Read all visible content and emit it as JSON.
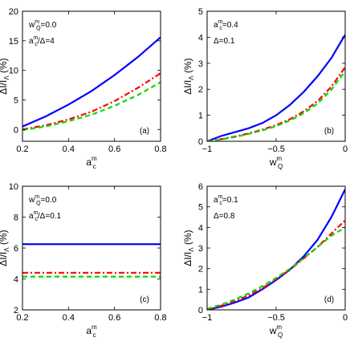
{
  "chart_data": [
    {
      "type": "line",
      "panel": "(a)",
      "xlabel": {
        "base": "a",
        "sup": "m",
        "sub": "c"
      },
      "ylabel": "ΔI/I_Λ (%)",
      "xlim": [
        0.2,
        0.8
      ],
      "ylim": [
        -2,
        20
      ],
      "xticks": [
        "0.2",
        "0.4",
        "0.6",
        "0.8"
      ],
      "yticks": [
        "0",
        "5",
        "10",
        "15",
        "20"
      ],
      "annotations": [
        "w_Q^m=0.0",
        "a_c^m/Δ=4"
      ],
      "series": [
        {
          "color": "#0000ff",
          "style": "solid",
          "x": [
            0.2,
            0.3,
            0.4,
            0.5,
            0.6,
            0.7,
            0.8
          ],
          "y": [
            0.5,
            2.2,
            4.2,
            6.5,
            9.2,
            12.2,
            15.6
          ]
        },
        {
          "color": "#ff0000",
          "style": "dashdot",
          "x": [
            0.2,
            0.3,
            0.4,
            0.5,
            0.6,
            0.7,
            0.8
          ],
          "y": [
            0.0,
            0.7,
            1.7,
            3.0,
            4.8,
            7.0,
            9.5
          ]
        },
        {
          "color": "#00dd00",
          "style": "dashed",
          "x": [
            0.2,
            0.3,
            0.4,
            0.5,
            0.6,
            0.7,
            0.8
          ],
          "y": [
            -0.1,
            0.5,
            1.4,
            2.5,
            4.0,
            5.8,
            8.0
          ]
        }
      ]
    },
    {
      "type": "line",
      "panel": "(b)",
      "xlabel": {
        "base": "w",
        "sup": "m",
        "sub": "Q"
      },
      "ylabel": "ΔI/I_Λ (%)",
      "xlim": [
        -1,
        0
      ],
      "ylim": [
        0,
        5
      ],
      "xticks": [
        "−1",
        "−0.5",
        "0"
      ],
      "yticks": [
        "0",
        "1",
        "2",
        "3",
        "4",
        "5"
      ],
      "annotations": [
        "a_c^m=0.4",
        "Δ=0.1"
      ],
      "series": [
        {
          "color": "#0000ff",
          "style": "solid",
          "x": [
            -1,
            -0.9,
            -0.8,
            -0.7,
            -0.6,
            -0.5,
            -0.4,
            -0.3,
            -0.2,
            -0.1,
            0
          ],
          "y": [
            0,
            0.2,
            0.35,
            0.5,
            0.7,
            1.0,
            1.4,
            1.9,
            2.5,
            3.2,
            4.1
          ]
        },
        {
          "color": "#ff0000",
          "style": "dashdot",
          "x": [
            -1,
            -0.9,
            -0.8,
            -0.7,
            -0.6,
            -0.5,
            -0.4,
            -0.3,
            -0.2,
            -0.1,
            0
          ],
          "y": [
            0,
            0.08,
            0.18,
            0.3,
            0.45,
            0.62,
            0.85,
            1.15,
            1.55,
            2.1,
            2.85
          ]
        },
        {
          "color": "#00dd00",
          "style": "dashed",
          "x": [
            -1,
            -0.9,
            -0.8,
            -0.7,
            -0.6,
            -0.5,
            -0.4,
            -0.3,
            -0.2,
            -0.1,
            0
          ],
          "y": [
            0,
            0.07,
            0.16,
            0.28,
            0.42,
            0.58,
            0.8,
            1.08,
            1.45,
            1.98,
            2.7
          ]
        }
      ]
    },
    {
      "type": "line",
      "panel": "(c)",
      "xlabel": {
        "base": "a",
        "sup": "m",
        "sub": "c"
      },
      "ylabel": "ΔI/I_Λ (%)",
      "xlim": [
        0.2,
        0.8
      ],
      "ylim": [
        2,
        10
      ],
      "xticks": [
        "0.2",
        "0.4",
        "0.6",
        "0.8"
      ],
      "yticks": [
        "2",
        "4",
        "6",
        "8",
        "10"
      ],
      "annotations": [
        "w_Q^m=0.0",
        "a_c^m/Δ=0.1"
      ],
      "series": [
        {
          "color": "#0000ff",
          "style": "solid",
          "x": [
            0.2,
            0.8
          ],
          "y": [
            6.25,
            6.25
          ]
        },
        {
          "color": "#ff0000",
          "style": "dashdot",
          "x": [
            0.2,
            0.8
          ],
          "y": [
            4.4,
            4.4
          ]
        },
        {
          "color": "#00dd00",
          "style": "dashed",
          "x": [
            0.2,
            0.8
          ],
          "y": [
            4.15,
            4.15
          ]
        }
      ]
    },
    {
      "type": "line",
      "panel": "(d)",
      "xlabel": {
        "base": "w",
        "sup": "m",
        "sub": "Q"
      },
      "ylabel": "ΔI/I_Λ (%)",
      "xlim": [
        -1,
        0
      ],
      "ylim": [
        0,
        6
      ],
      "xticks": [
        "−1",
        "−0.5",
        "0"
      ],
      "yticks": [
        "0",
        "1",
        "2",
        "3",
        "4",
        "5",
        "6"
      ],
      "annotations": [
        "a_c^m=0.1",
        "Δ=0.8"
      ],
      "series": [
        {
          "color": "#0000ff",
          "style": "solid",
          "x": [
            -1,
            -0.9,
            -0.8,
            -0.7,
            -0.6,
            -0.5,
            -0.4,
            -0.3,
            -0.2,
            -0.1,
            0
          ],
          "y": [
            0,
            0.15,
            0.35,
            0.6,
            1.0,
            1.45,
            1.95,
            2.6,
            3.4,
            4.5,
            5.85
          ]
        },
        {
          "color": "#ff0000",
          "style": "dashdot",
          "x": [
            -1,
            -0.9,
            -0.8,
            -0.7,
            -0.6,
            -0.5,
            -0.4,
            -0.3,
            -0.2,
            -0.1,
            0
          ],
          "y": [
            0,
            0.2,
            0.42,
            0.7,
            1.05,
            1.5,
            1.95,
            2.5,
            3.05,
            3.7,
            4.35
          ]
        },
        {
          "color": "#00dd00",
          "style": "dashed",
          "x": [
            -1,
            -0.9,
            -0.8,
            -0.7,
            -0.6,
            -0.5,
            -0.4,
            -0.3,
            -0.2,
            -0.1,
            0
          ],
          "y": [
            0.05,
            0.25,
            0.5,
            0.8,
            1.15,
            1.55,
            2.0,
            2.5,
            3.05,
            3.6,
            4.0
          ]
        }
      ]
    }
  ]
}
